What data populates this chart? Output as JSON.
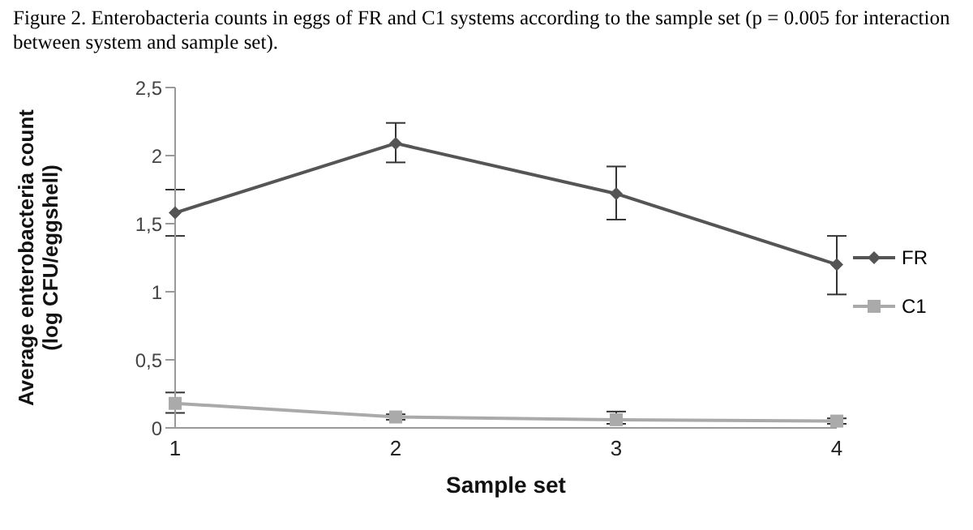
{
  "chart_data": {
    "type": "line",
    "title": "Figure 2. Enterobacteria counts in eggs of FR and C1 systems according to the sample set (p = 0.005 for interaction between system and sample set).",
    "xlabel": "Sample set",
    "ylabel": "Average enterobacteria count (log CFU/eggshell)",
    "categories": [
      "1",
      "2",
      "3",
      "4"
    ],
    "series": [
      {
        "name": "FR",
        "color": "#555555",
        "marker": "diamond",
        "values": [
          1.58,
          2.09,
          1.72,
          1.2
        ],
        "errors": [
          [
            1.41,
            1.75
          ],
          [
            1.95,
            2.24
          ],
          [
            1.53,
            1.92
          ],
          [
            0.98,
            1.41
          ]
        ]
      },
      {
        "name": "C1",
        "color": "#aaaaaa",
        "marker": "square",
        "values": [
          0.18,
          0.08,
          0.06,
          0.05
        ],
        "errors": [
          [
            0.11,
            0.26
          ],
          [
            0.06,
            0.1
          ],
          [
            0.03,
            0.12
          ],
          [
            0.03,
            0.07
          ]
        ]
      }
    ],
    "ylim": [
      0,
      2.5
    ],
    "yticks": [
      0,
      {
        "value": 0.5,
        "label": "0,5"
      },
      1,
      {
        "value": 1.5,
        "label": "1,5"
      },
      2,
      {
        "value": 2.5,
        "label": "2,5"
      }
    ],
    "grid": false,
    "legend": "right",
    "line_style": "solid"
  }
}
